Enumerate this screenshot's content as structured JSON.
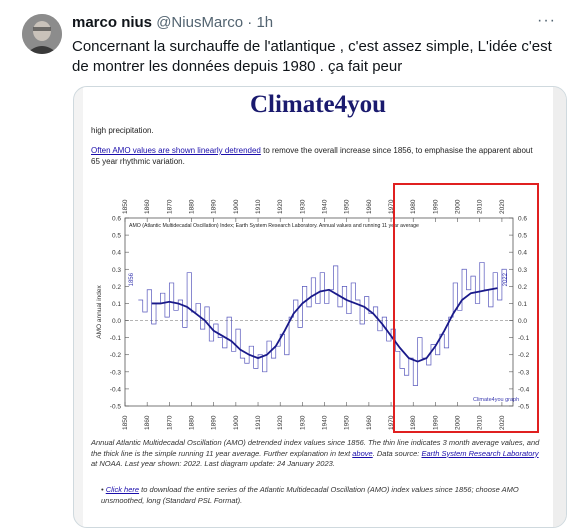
{
  "tweet": {
    "author_name": "marco nius",
    "handle": "@NiusMarco",
    "separator": "·",
    "time": "1h",
    "more_label": "···",
    "text": "Concernant la surchauffe de l'atlantique , c'est assez simple, L'idée c'est de montrer les données depuis 1980 . ça fait peur"
  },
  "media": {
    "site_title": "Climate4you",
    "intro_fragment": "high precipitation.",
    "detrend_link": "Often AMO values are shown linearly detrended",
    "detrend_text": " to remove the overall increase since 1856, to emphasise the apparent about 65 year rhythmic variation.",
    "caption": {
      "part1": "Annual Atlantic Multidecadal Oscillation (AMO) detrended index values since 1856. The thin line indicates 3 month average values, and the thick line is the simple running 11 year average. Further explanation in text ",
      "above_link": "above",
      "part2": ". Data source: ",
      "source_link": "Earth System Research Laboratory",
      "part3": " at NOAA. Last year shown: 2022. Last diagram update: 24 January 2023."
    },
    "bullet": {
      "click_link": "Click here",
      "text": " to download the entire series of the Atlantic Multidecadal Oscillation (AMO) index values since 1856; choose AMO unsmoothed, long (Standard PSL Format)."
    }
  },
  "chart_data": {
    "type": "line",
    "title": "AMO (Atlantic Multidecadal Oscillation) Index; Earth System Research Laboratory. Annual values and running 11 year average",
    "ylabel": "AMO annual index",
    "start_label": "1856",
    "end_label": "2022",
    "credit": "Climate4you graph",
    "xlim": [
      1850,
      2025
    ],
    "ylim": [
      -0.5,
      0.6
    ],
    "x_ticks": [
      "1850",
      "1860",
      "1870",
      "1880",
      "1890",
      "1900",
      "1910",
      "1920",
      "1930",
      "1940",
      "1950",
      "1960",
      "1970",
      "1980",
      "1990",
      "2000",
      "2010",
      "2020"
    ],
    "y_ticks": [
      "0.6",
      "0.5",
      "0.4",
      "0.3",
      "0.2",
      "0.1",
      "0.0",
      "-0.1",
      "-0.2",
      "-0.3",
      "-0.4",
      "-0.5"
    ],
    "series": [
      {
        "x": [
          1856,
          1858,
          1860,
          1862,
          1864,
          1866,
          1868,
          1870,
          1872,
          1874,
          1876,
          1878,
          1880,
          1882,
          1884,
          1886,
          1888,
          1890,
          1892,
          1894,
          1896,
          1898,
          1900,
          1902,
          1904,
          1906,
          1908,
          1910,
          1912,
          1914,
          1916,
          1918,
          1920,
          1922,
          1924,
          1926,
          1928,
          1930,
          1932,
          1934,
          1936,
          1938,
          1940,
          1942,
          1944,
          1946,
          1948,
          1950,
          1952,
          1954,
          1956,
          1958,
          1960,
          1962,
          1964,
          1966,
          1968,
          1970,
          1972,
          1974,
          1976,
          1978,
          1980,
          1982,
          1984,
          1986,
          1988,
          1990,
          1992,
          1994,
          1996,
          1998,
          2000,
          2002,
          2004,
          2006,
          2008,
          2010,
          2012,
          2014,
          2016,
          2018,
          2020,
          2022
        ],
        "values": [
          0.12,
          0.05,
          0.18,
          -0.02,
          0.1,
          0.16,
          0.02,
          0.22,
          0.06,
          0.12,
          -0.04,
          0.28,
          0.05,
          0.1,
          -0.05,
          0.08,
          -0.12,
          -0.02,
          -0.1,
          -0.16,
          0.02,
          -0.18,
          -0.05,
          -0.22,
          -0.25,
          -0.15,
          -0.28,
          -0.2,
          -0.3,
          -0.12,
          -0.22,
          -0.15,
          -0.08,
          -0.2,
          0.02,
          0.12,
          -0.04,
          0.2,
          0.08,
          0.25,
          0.1,
          0.28,
          0.1,
          0.18,
          0.32,
          0.08,
          0.2,
          0.04,
          0.22,
          0.12,
          -0.02,
          0.14,
          0.04,
          0.08,
          -0.06,
          0.02,
          -0.12,
          -0.05,
          -0.18,
          -0.28,
          -0.32,
          -0.22,
          -0.38,
          -0.1,
          -0.22,
          -0.26,
          -0.14,
          -0.2,
          -0.08,
          -0.16,
          0.02,
          0.22,
          0.06,
          0.3,
          0.18,
          0.26,
          0.1,
          0.34,
          0.18,
          0.08,
          0.28,
          0.12,
          0.3,
          0.22
        ]
      },
      {
        "x": [
          1862,
          1866,
          1870,
          1874,
          1878,
          1882,
          1886,
          1890,
          1894,
          1898,
          1902,
          1906,
          1910,
          1914,
          1918,
          1922,
          1926,
          1930,
          1934,
          1938,
          1942,
          1946,
          1950,
          1954,
          1958,
          1962,
          1966,
          1970,
          1974,
          1978,
          1982,
          1986,
          1990,
          1994,
          1998,
          2002,
          2006,
          2010,
          2014,
          2018
        ],
        "values": [
          0.1,
          0.1,
          0.11,
          0.1,
          0.08,
          0.04,
          0.0,
          -0.06,
          -0.09,
          -0.12,
          -0.17,
          -0.2,
          -0.22,
          -0.2,
          -0.15,
          -0.06,
          0.04,
          0.1,
          0.14,
          0.17,
          0.18,
          0.15,
          0.12,
          0.1,
          0.08,
          0.04,
          -0.02,
          -0.09,
          -0.16,
          -0.22,
          -0.24,
          -0.22,
          -0.15,
          -0.06,
          0.04,
          0.12,
          0.16,
          0.17,
          0.18,
          0.19
        ]
      }
    ],
    "colors": {
      "line": "#3a3ab0",
      "grid": "#888888",
      "highlight": "#e02020"
    }
  }
}
